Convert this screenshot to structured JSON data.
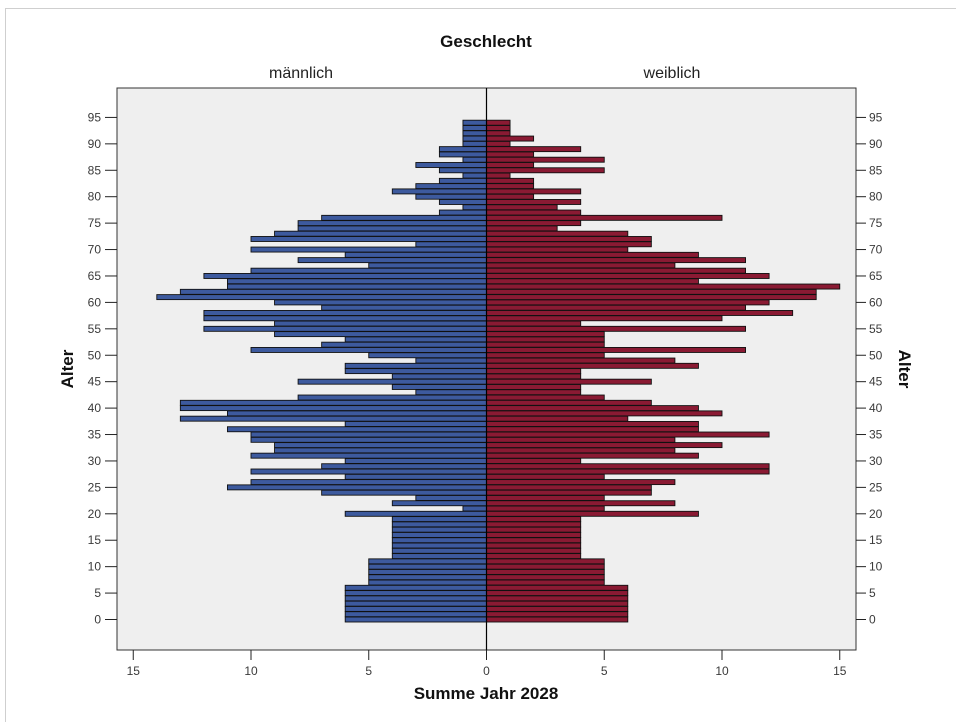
{
  "chart_data": {
    "type": "bar",
    "orientation": "horizontal-population-pyramid",
    "title": "Geschlecht",
    "xlabel": "Summe Jahr 2028",
    "ylabel": "Alter",
    "panels": [
      "männlich",
      "weiblich"
    ],
    "xlim": [
      -15,
      15
    ],
    "xticks": [
      15,
      10,
      5,
      0,
      5,
      10,
      15
    ],
    "ylim": [
      0,
      97
    ],
    "yticks": [
      0,
      5,
      10,
      15,
      20,
      25,
      30,
      35,
      40,
      45,
      50,
      55,
      60,
      65,
      70,
      75,
      80,
      85,
      90,
      95
    ],
    "grid": false,
    "ages": [
      0,
      1,
      2,
      3,
      4,
      5,
      6,
      7,
      8,
      9,
      10,
      11,
      12,
      13,
      14,
      15,
      16,
      17,
      18,
      19,
      20,
      21,
      22,
      23,
      24,
      25,
      26,
      27,
      28,
      29,
      30,
      31,
      32,
      33,
      34,
      35,
      36,
      37,
      38,
      39,
      40,
      41,
      42,
      43,
      44,
      45,
      46,
      47,
      48,
      49,
      50,
      51,
      52,
      53,
      54,
      55,
      56,
      57,
      58,
      59,
      60,
      61,
      62,
      63,
      64,
      65,
      66,
      67,
      68,
      69,
      70,
      71,
      72,
      73,
      74,
      75,
      76,
      77,
      78,
      79,
      80,
      81,
      82,
      83,
      84,
      85,
      86,
      87,
      88,
      89,
      90,
      91,
      92,
      93,
      94,
      95
    ],
    "series": [
      {
        "name": "männlich",
        "color": "#3d5a9e",
        "values": [
          6,
          6,
          6,
          6,
          6,
          6,
          6,
          5,
          5,
          5,
          5,
          5,
          4,
          4,
          4,
          4,
          4,
          4,
          4,
          4,
          6,
          1,
          4,
          3,
          7,
          11,
          10,
          6,
          10,
          7,
          6,
          10,
          9,
          9,
          10,
          10,
          11,
          6,
          13,
          11,
          13,
          13,
          8,
          3,
          4,
          8,
          4,
          6,
          6,
          3,
          5,
          10,
          7,
          6,
          9,
          12,
          9,
          12,
          12,
          7,
          9,
          14,
          13,
          11,
          11,
          12,
          10,
          5,
          8,
          6,
          10,
          3,
          10,
          9,
          8,
          8,
          7,
          2,
          1,
          2,
          3,
          4,
          3,
          2,
          1,
          2,
          3,
          1,
          2,
          2,
          1,
          1,
          1,
          1,
          1,
          0
        ],
        "value_labels": "männlich"
      },
      {
        "name": "weiblich",
        "color": "#8a1a33",
        "values": [
          6,
          6,
          6,
          6,
          6,
          6,
          6,
          5,
          5,
          5,
          5,
          5,
          4,
          4,
          4,
          4,
          4,
          4,
          4,
          4,
          9,
          5,
          8,
          5,
          7,
          7,
          8,
          5,
          12,
          12,
          4,
          9,
          8,
          10,
          8,
          12,
          9,
          9,
          6,
          10,
          9,
          7,
          5,
          4,
          4,
          7,
          4,
          4,
          9,
          8,
          5,
          11,
          5,
          5,
          5,
          11,
          4,
          10,
          13,
          11,
          12,
          14,
          14,
          15,
          9,
          12,
          11,
          8,
          11,
          9,
          6,
          7,
          7,
          6,
          3,
          4,
          10,
          4,
          3,
          4,
          2,
          4,
          2,
          2,
          1,
          5,
          2,
          5,
          2,
          4,
          1,
          2,
          1,
          1,
          1,
          0
        ],
        "value_labels": "weiblich"
      }
    ]
  }
}
